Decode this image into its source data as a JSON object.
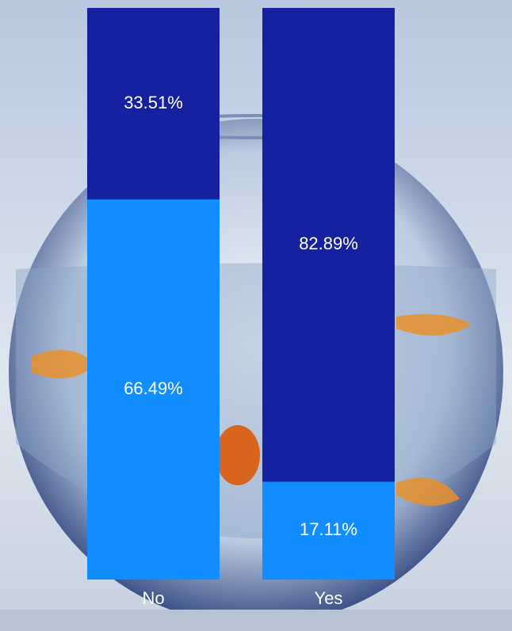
{
  "chart_data": {
    "type": "stacked_bar",
    "categories": [
      "No",
      "Yes"
    ],
    "series": [
      {
        "color": "#118dff",
        "values": [
          66.49,
          17.11
        ],
        "value_labels": [
          "66.49%",
          "17.11%"
        ]
      },
      {
        "color": "#16219f",
        "values": [
          33.51,
          82.89
        ],
        "value_labels": [
          "33.51%",
          "82.89%"
        ]
      }
    ],
    "ylim": [
      0,
      100
    ]
  }
}
